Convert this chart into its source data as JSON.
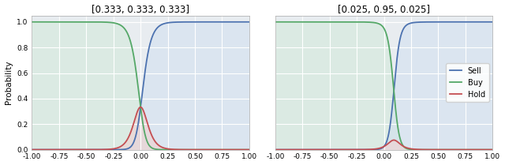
{
  "subplots": [
    {
      "title": "[0.333, 0.333, 0.333]",
      "prior": [
        0.333,
        0.333,
        0.333
      ]
    },
    {
      "title": "[0.025, 0.95, 0.025]",
      "prior": [
        0.025,
        0.95,
        0.025
      ]
    }
  ],
  "x_min": -1.0,
  "x_max": 1.0,
  "y_min": 0.0,
  "y_max": 1.05,
  "ylabel": "Probability",
  "xticks": [
    -1.0,
    -0.75,
    -0.5,
    -0.25,
    0.0,
    0.25,
    0.5,
    0.75,
    1.0
  ],
  "yticks": [
    0.0,
    0.2,
    0.4,
    0.6,
    0.8,
    1.0
  ],
  "colors": {
    "sell": "#4c72b0",
    "buy": "#55a868",
    "hold": "#c44e52"
  },
  "fill_colors": {
    "sell": "#d0dff0",
    "buy": "#d0ead8",
    "hold": "#f2d0d0"
  },
  "legend_labels": [
    "Sell",
    "Buy",
    "Hold"
  ],
  "beta": 20.0,
  "figsize": [
    6.4,
    2.09
  ],
  "dpi": 100,
  "bg_color": "#e8ecf0",
  "grid_color": "#ffffff"
}
